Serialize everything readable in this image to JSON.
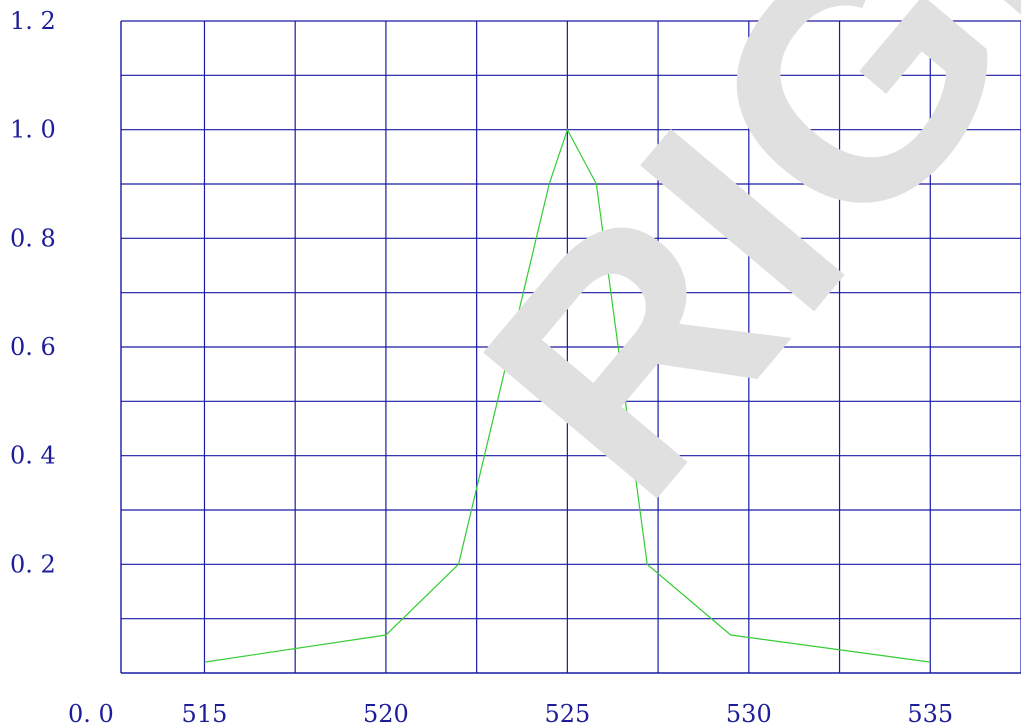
{
  "watermark": "RIGHT",
  "chart_data": {
    "type": "line",
    "x": [
      515,
      520,
      522,
      524.5,
      525,
      525.8,
      527.2,
      529.5,
      535
    ],
    "series": [
      {
        "values": [
          0.02,
          0.07,
          0.2,
          0.9,
          1.0,
          0.9,
          0.2,
          0.07,
          0.02
        ],
        "color": "#33cc33"
      }
    ],
    "xlim": [
      512.7,
      537.5
    ],
    "ylim": [
      0.0,
      1.2
    ],
    "x_ticks": [
      515,
      520,
      525,
      530,
      535
    ],
    "x_tick_labels": [
      "515",
      "520",
      "525",
      "530",
      "535"
    ],
    "y_ticks": [
      0.0,
      0.2,
      0.4,
      0.6,
      0.8,
      1.0,
      1.2
    ],
    "y_tick_labels": [
      "0. 0",
      "0. 2",
      "0. 4",
      "0. 6",
      "0. 8",
      "1. 0",
      "1. 2"
    ],
    "x_grid_step": 2.5,
    "y_grid_step": 0.1,
    "grid": true,
    "grid_color": "#1a1aa6",
    "tick_label_color": "#1d1d9a",
    "title": "",
    "xlabel": "",
    "ylabel": ""
  }
}
